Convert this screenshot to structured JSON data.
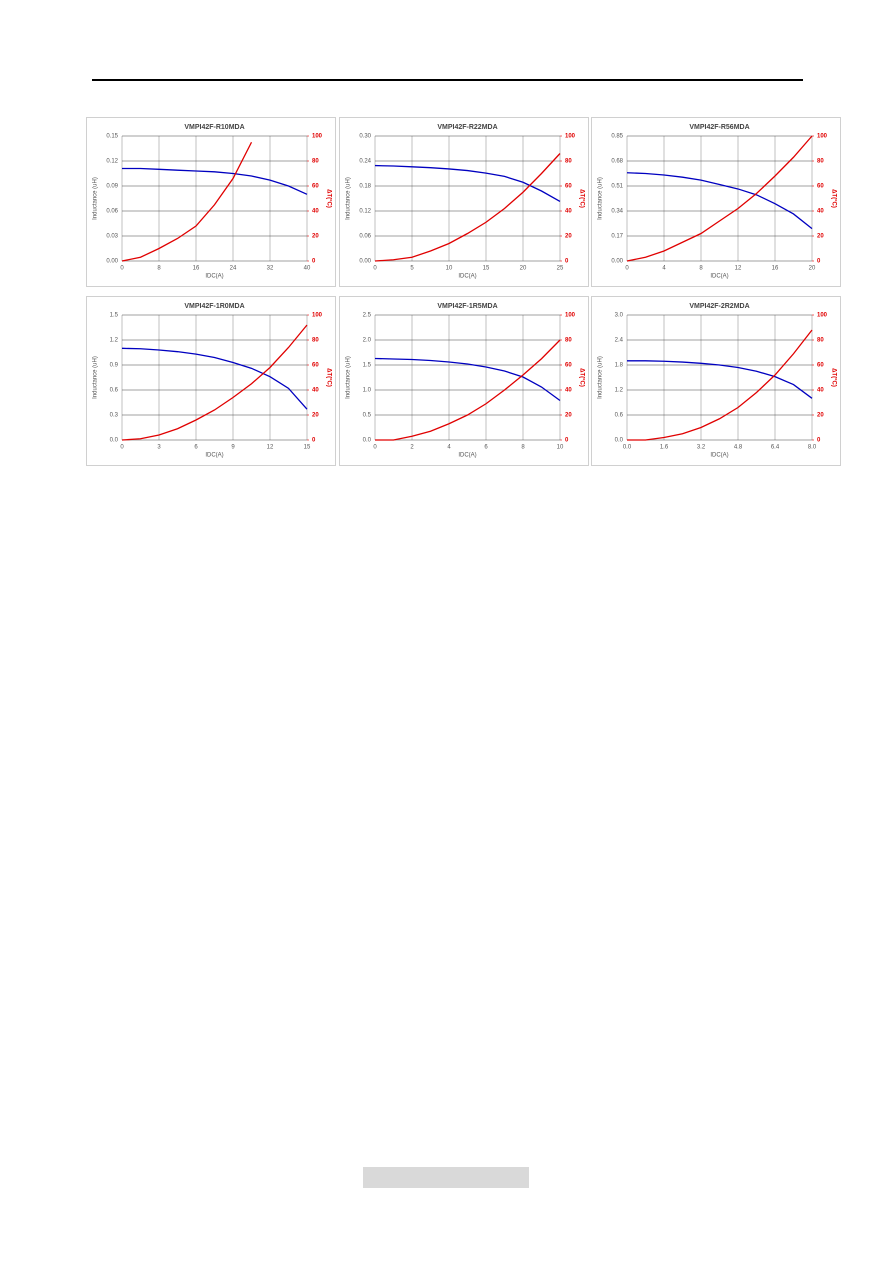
{
  "chart_data": [
    {
      "type": "line",
      "title": "VMPI42F-R10MDA",
      "x_label": "IDC(A)",
      "y_label": "Inductance (uH)",
      "y2_label": "ΔT(°C)",
      "x": [
        0,
        4,
        8,
        12,
        16,
        20,
        24,
        28,
        32,
        36,
        40
      ],
      "series": [
        {
          "color": "#0000c0",
          "axis": "y",
          "values": [
            0.111,
            0.111,
            0.11,
            0.109,
            0.108,
            0.107,
            0.105,
            0.102,
            0.097,
            0.09,
            0.08
          ]
        },
        {
          "color": "#e00000",
          "axis": "y2",
          "values": [
            0,
            3,
            10,
            18,
            28,
            45,
            66,
            95,
            null,
            null,
            null
          ]
        }
      ],
      "xlim": [
        0,
        40
      ],
      "xticks": [
        0,
        8,
        16,
        24,
        32,
        40
      ],
      "ylim": [
        0,
        0.15
      ],
      "yticks": [
        {
          "value": 0,
          "label": "0.00"
        },
        {
          "value": 0.03,
          "label": "0.03"
        },
        {
          "value": 0.06,
          "label": "0.06"
        },
        {
          "value": 0.09,
          "label": "0.09"
        },
        {
          "value": 0.12,
          "label": "0.12"
        },
        {
          "value": 0.15,
          "label": "0.15"
        }
      ],
      "y2lim": [
        0,
        100
      ],
      "y2ticks": [
        0,
        20,
        40,
        60,
        80,
        100
      ],
      "grid": true
    },
    {
      "type": "line",
      "title": "VMPI42F-R22MDA",
      "x_label": "IDC(A)",
      "y_label": "Inductance (uH)",
      "y2_label": "ΔT(°C)",
      "x": [
        0,
        2.5,
        5,
        7.5,
        10,
        12.5,
        15,
        17.5,
        20,
        22.5,
        25
      ],
      "series": [
        {
          "color": "#0000c0",
          "axis": "y",
          "values": [
            0.229,
            0.228,
            0.226,
            0.224,
            0.221,
            0.217,
            0.211,
            0.203,
            0.189,
            0.168,
            0.143
          ]
        },
        {
          "color": "#e00000",
          "axis": "y2",
          "values": [
            0,
            1,
            3,
            8,
            14,
            22,
            31,
            42,
            55,
            70,
            86
          ]
        }
      ],
      "xlim": [
        0,
        25
      ],
      "xticks": [
        0,
        5,
        10,
        15,
        20,
        25
      ],
      "ylim": [
        0,
        0.3
      ],
      "yticks": [
        {
          "value": 0,
          "label": "0.00"
        },
        {
          "value": 0.06,
          "label": "0.06"
        },
        {
          "value": 0.12,
          "label": "0.12"
        },
        {
          "value": 0.18,
          "label": "0.18"
        },
        {
          "value": 0.24,
          "label": "0.24"
        },
        {
          "value": 0.3,
          "label": "0.30"
        }
      ],
      "y2lim": [
        0,
        100
      ],
      "y2ticks": [
        0,
        20,
        40,
        60,
        80,
        100
      ],
      "grid": true
    },
    {
      "type": "line",
      "title": "VMPI42F-R56MDA",
      "x_label": "IDC(A)",
      "y_label": "Inductance (uH)",
      "y2_label": "ΔT(°C)",
      "x": [
        0,
        2,
        4,
        6,
        8,
        10,
        12,
        14,
        16,
        18,
        20
      ],
      "series": [
        {
          "color": "#0000c0",
          "axis": "y",
          "values": [
            0.6,
            0.595,
            0.585,
            0.57,
            0.55,
            0.52,
            0.49,
            0.45,
            0.39,
            0.32,
            0.22
          ]
        },
        {
          "color": "#e00000",
          "axis": "y2",
          "values": [
            0,
            3,
            8,
            15,
            22,
            32,
            42,
            54,
            68,
            83,
            100
          ]
        }
      ],
      "xlim": [
        0,
        20
      ],
      "xticks": [
        0,
        4,
        8,
        12,
        16,
        20
      ],
      "ylim": [
        0,
        0.85
      ],
      "yticks": [
        {
          "value": 0,
          "label": "0.00"
        },
        {
          "value": 0.17,
          "label": "0.17"
        },
        {
          "value": 0.34,
          "label": "0.34"
        },
        {
          "value": 0.51,
          "label": "0.51"
        },
        {
          "value": 0.68,
          "label": "0.68"
        },
        {
          "value": 0.85,
          "label": "0.85"
        }
      ],
      "y2lim": [
        0,
        100
      ],
      "y2ticks": [
        0,
        20,
        40,
        60,
        80,
        100
      ],
      "grid": true
    },
    {
      "type": "line",
      "title": "VMPI42F-1R0MDA",
      "x_label": "IDC(A)",
      "y_label": "Inductance (uH)",
      "y2_label": "ΔT(°C)",
      "x": [
        0,
        1.5,
        3,
        4.5,
        6,
        7.5,
        9,
        10.5,
        12,
        13.5,
        15
      ],
      "series": [
        {
          "color": "#0000c0",
          "axis": "y",
          "values": [
            1.1,
            1.095,
            1.08,
            1.06,
            1.03,
            0.99,
            0.93,
            0.86,
            0.76,
            0.62,
            0.37
          ]
        },
        {
          "color": "#e00000",
          "axis": "y2",
          "values": [
            0,
            1,
            4,
            9,
            16,
            24,
            34,
            45,
            58,
            74,
            92
          ]
        }
      ],
      "xlim": [
        0,
        15
      ],
      "xticks": [
        0,
        3,
        6,
        9,
        12,
        15
      ],
      "ylim": [
        0,
        1.5
      ],
      "yticks": [
        {
          "value": 0,
          "label": "0.0"
        },
        0.3,
        0.6,
        0.9,
        1.2,
        1.5
      ],
      "y2lim": [
        0,
        100
      ],
      "y2ticks": [
        0,
        20,
        40,
        60,
        80,
        100
      ],
      "grid": true
    },
    {
      "type": "line",
      "title": "VMPI42F-1R5MDA",
      "x_label": "IDC(A)",
      "y_label": "Inductance (uH)",
      "y2_label": "ΔT(°C)",
      "x": [
        0,
        1,
        2,
        3,
        4,
        5,
        6,
        7,
        8,
        9,
        10
      ],
      "series": [
        {
          "color": "#0000c0",
          "axis": "y",
          "values": [
            1.63,
            1.62,
            1.61,
            1.59,
            1.56,
            1.52,
            1.46,
            1.38,
            1.26,
            1.06,
            0.79
          ]
        },
        {
          "color": "#e00000",
          "axis": "y2",
          "values": [
            0,
            0,
            3,
            7,
            13,
            20,
            29,
            40,
            52,
            65,
            80
          ]
        }
      ],
      "xlim": [
        0,
        10
      ],
      "xticks": [
        0,
        2,
        4,
        6,
        8,
        10
      ],
      "ylim": [
        0,
        2.5
      ],
      "yticks": [
        {
          "value": 0,
          "label": "0.0"
        },
        0.5,
        {
          "value": 1,
          "label": "1.0"
        },
        1.5,
        {
          "value": 2,
          "label": "2.0"
        },
        2.5
      ],
      "y2lim": [
        0,
        100
      ],
      "y2ticks": [
        0,
        20,
        40,
        60,
        80,
        100
      ],
      "grid": true
    },
    {
      "type": "line",
      "title": "VMPI42F-2R2MDA",
      "x_label": "IDC(A)",
      "y_label": "Inductance (uH)",
      "y2_label": "ΔT(°C)",
      "x": [
        0,
        0.8,
        1.6,
        2.4,
        3.2,
        4,
        4.8,
        5.6,
        6.4,
        7.2,
        8
      ],
      "series": [
        {
          "color": "#0000c0",
          "axis": "y",
          "values": [
            1.9,
            1.9,
            1.89,
            1.87,
            1.84,
            1.8,
            1.74,
            1.65,
            1.52,
            1.33,
            1.0
          ]
        },
        {
          "color": "#e00000",
          "axis": "y2",
          "values": [
            0,
            0,
            2,
            5,
            10,
            17,
            26,
            38,
            52,
            69,
            88
          ]
        }
      ],
      "xlim": [
        0,
        8
      ],
      "xticks": [
        {
          "value": 0,
          "label": "0.0"
        },
        1.6,
        3.2,
        4.8,
        6.4,
        {
          "value": 8,
          "label": "8.0"
        }
      ],
      "ylim": [
        0,
        3
      ],
      "yticks": [
        {
          "value": 0,
          "label": "0.0"
        },
        0.6,
        1.2,
        1.8,
        2.4,
        {
          "value": 3,
          "label": "3.0"
        }
      ],
      "y2lim": [
        0,
        100
      ],
      "y2ticks": [
        0,
        20,
        40,
        60,
        80,
        100
      ],
      "grid": true
    }
  ]
}
